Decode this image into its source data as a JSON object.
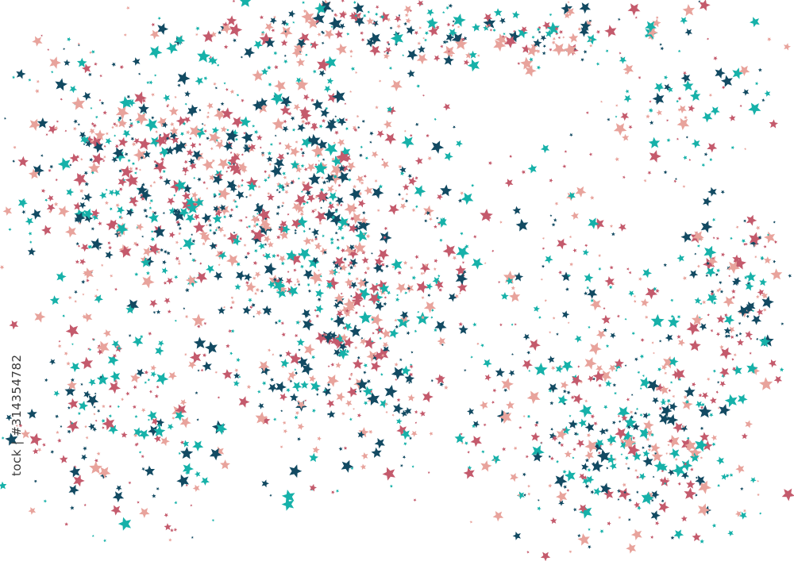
{
  "image": {
    "description_type": "star-confetti-pattern",
    "palette": {
      "dark_teal": "#124a62",
      "teal": "#16b1a9",
      "rose": "#c45a6c",
      "pink": "#e8a39c"
    },
    "background": "#ffffff"
  },
  "watermark": {
    "stock_id": "tock | #314354782"
  }
}
